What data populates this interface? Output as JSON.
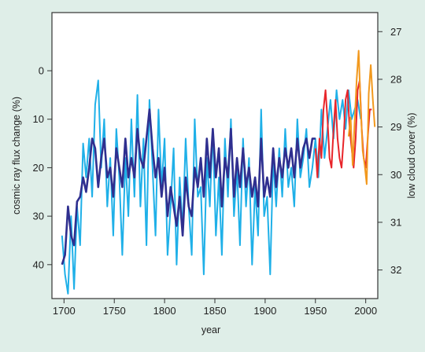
{
  "chart_data": {
    "type": "line",
    "xlabel": "year",
    "ylabel_left": "cosmic ray flux change (%)",
    "ylabel_right": "low cloud cover (%)",
    "xlim": [
      1688,
      2012
    ],
    "ylim_left": [
      47,
      -12
    ],
    "ylim_right": [
      32.6,
      26.6
    ],
    "x_ticks": [
      1700,
      1750,
      1800,
      1850,
      1900,
      1950,
      2000
    ],
    "y_left_ticks": [
      0,
      10,
      20,
      30,
      40
    ],
    "y_right_ticks": [
      27,
      28,
      29,
      30,
      31,
      32
    ],
    "grid": false,
    "colors": {
      "background": "#dfeee8",
      "plot_background": "#ffffff",
      "light_blue": "#1fb0e8",
      "dark_blue": "#2f2f8f",
      "red": "#e8252a",
      "orange": "#f2991e"
    },
    "series": [
      {
        "color": "#1fb0e8",
        "axis": "left",
        "x": [
          1698,
          1701,
          1704,
          1707,
          1710,
          1713,
          1716,
          1719,
          1722,
          1725,
          1728,
          1731,
          1734,
          1737,
          1740,
          1743,
          1746,
          1749,
          1752,
          1755,
          1758,
          1761,
          1764,
          1767,
          1770,
          1773,
          1776,
          1779,
          1782,
          1785,
          1788,
          1791,
          1794,
          1797,
          1800,
          1803,
          1806,
          1809,
          1812,
          1815,
          1818,
          1821,
          1824,
          1827,
          1830,
          1833,
          1836,
          1839,
          1842,
          1845,
          1848,
          1851,
          1854,
          1857,
          1860,
          1863,
          1866,
          1869,
          1872,
          1875,
          1878,
          1881,
          1884,
          1887,
          1890,
          1893,
          1896,
          1899,
          1902,
          1905,
          1908,
          1911,
          1914,
          1917,
          1920,
          1923,
          1926,
          1929,
          1932,
          1935,
          1938,
          1941,
          1944,
          1947,
          1950,
          1953,
          1956,
          1959,
          1962,
          1965,
          1968,
          1971,
          1974,
          1977,
          1980,
          1983,
          1986,
          1989,
          1992,
          1995
        ],
        "y": [
          34,
          42,
          46,
          30,
          45,
          28,
          36,
          15,
          22,
          14,
          26,
          7,
          2,
          20,
          10,
          28,
          18,
          34,
          12,
          22,
          38,
          18,
          30,
          10,
          26,
          5,
          28,
          14,
          36,
          6,
          20,
          34,
          8,
          24,
          14,
          38,
          28,
          16,
          40,
          22,
          33,
          14,
          28,
          38,
          10,
          26,
          24,
          42,
          18,
          28,
          12,
          34,
          22,
          38,
          14,
          26,
          10,
          30,
          20,
          36,
          14,
          28,
          18,
          40,
          24,
          34,
          8,
          30,
          26,
          42,
          18,
          28,
          16,
          26,
          12,
          24,
          20,
          28,
          10,
          22,
          18,
          12,
          24,
          20,
          14,
          22,
          8,
          18,
          12,
          6,
          14,
          4,
          10,
          6,
          12,
          4,
          10,
          8,
          6,
          10
        ]
      },
      {
        "color": "#2f2f8f",
        "axis": "left",
        "x": [
          1698,
          1701,
          1704,
          1707,
          1710,
          1713,
          1716,
          1719,
          1722,
          1725,
          1728,
          1731,
          1734,
          1737,
          1740,
          1743,
          1746,
          1749,
          1752,
          1755,
          1758,
          1761,
          1764,
          1767,
          1770,
          1773,
          1776,
          1779,
          1782,
          1785,
          1788,
          1791,
          1794,
          1797,
          1800,
          1803,
          1806,
          1809,
          1812,
          1815,
          1818,
          1821,
          1824,
          1827,
          1830,
          1833,
          1836,
          1839,
          1842,
          1845,
          1848,
          1851,
          1854,
          1857,
          1860,
          1863,
          1866,
          1869,
          1872,
          1875,
          1878,
          1881,
          1884,
          1887,
          1890,
          1893,
          1896,
          1899,
          1902,
          1905,
          1908,
          1911,
          1914,
          1917,
          1920,
          1923,
          1926,
          1929,
          1932,
          1935,
          1938,
          1941,
          1944,
          1947,
          1950
        ],
        "y": [
          40,
          38,
          28,
          34,
          36,
          27,
          26,
          22,
          25,
          20,
          14,
          16,
          24,
          18,
          14,
          22,
          20,
          26,
          16,
          20,
          24,
          14,
          22,
          18,
          22,
          12,
          18,
          20,
          14,
          8,
          16,
          22,
          18,
          26,
          20,
          30,
          24,
          28,
          32,
          26,
          34,
          22,
          28,
          30,
          20,
          24,
          18,
          26,
          14,
          22,
          12,
          22,
          16,
          28,
          18,
          22,
          12,
          26,
          18,
          24,
          16,
          24,
          20,
          26,
          22,
          28,
          14,
          26,
          22,
          26,
          16,
          24,
          18,
          22,
          16,
          20,
          16,
          22,
          14,
          20,
          16,
          14,
          18,
          14,
          14
        ]
      },
      {
        "color": "#e8252a",
        "axis": "left",
        "x": [
          1950,
          1952,
          1954,
          1956,
          1958,
          1960,
          1962,
          1964,
          1966,
          1968,
          1970,
          1972,
          1974,
          1976,
          1978,
          1980,
          1982,
          1984,
          1986,
          1988,
          1990,
          1992,
          1994,
          1996,
          1998,
          2000,
          2002,
          2004,
          2006
        ],
        "y": [
          16,
          22,
          14,
          18,
          8,
          4,
          10,
          18,
          20,
          12,
          6,
          14,
          18,
          20,
          14,
          6,
          4,
          12,
          16,
          20,
          14,
          4,
          2,
          12,
          18,
          20,
          14,
          8,
          8
        ]
      },
      {
        "color": "#f2991e",
        "axis": "right",
        "x": [
          1983,
          1985,
          1987,
          1989,
          1991,
          1993,
          1995,
          1997,
          1999,
          2001,
          2003,
          2005,
          2007,
          2009
        ],
        "y": [
          29.2,
          28.8,
          29.8,
          28.9,
          28.0,
          27.4,
          28.6,
          29.5,
          29.8,
          30.2,
          28.3,
          27.7,
          28.4,
          29.0
        ]
      }
    ]
  }
}
